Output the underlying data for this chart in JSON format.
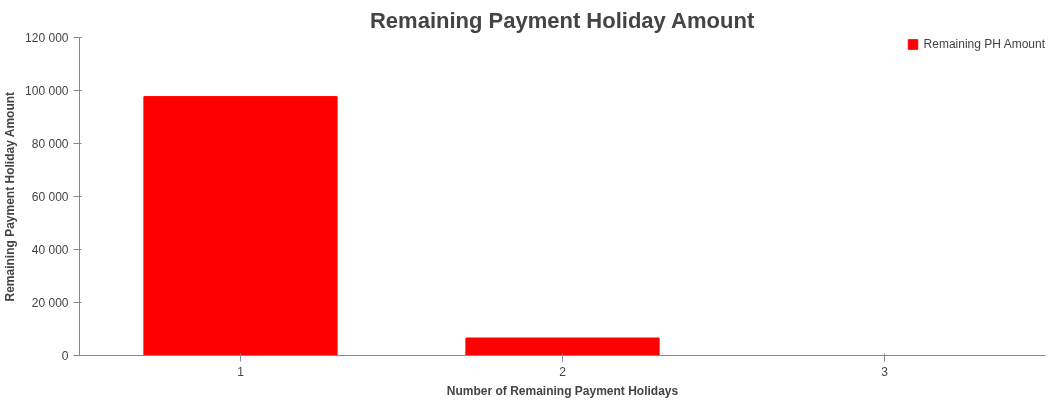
{
  "chart_data": {
    "type": "bar",
    "title": "Remaining Payment Holiday Amount",
    "xlabel": "Number of Remaining Payment Holidays",
    "ylabel": "Remaining Payment Holiday Amount",
    "categories": [
      "1",
      "2",
      "3"
    ],
    "series": [
      {
        "name": "Remaining PH Amount",
        "color": "#ff0000",
        "values": [
          97700,
          6600,
          0
        ]
      }
    ],
    "ylim": [
      0,
      120000
    ],
    "yticks": [
      0,
      {
        "value": 20000,
        "label": "20 000"
      },
      {
        "value": 40000,
        "label": "40 000"
      },
      {
        "value": 60000,
        "label": "60 000"
      },
      {
        "value": 80000,
        "label": "80 000"
      },
      {
        "value": 100000,
        "label": "100 000"
      },
      {
        "value": 120000,
        "label": "120 000"
      }
    ],
    "grid": false,
    "legend": "top right"
  }
}
